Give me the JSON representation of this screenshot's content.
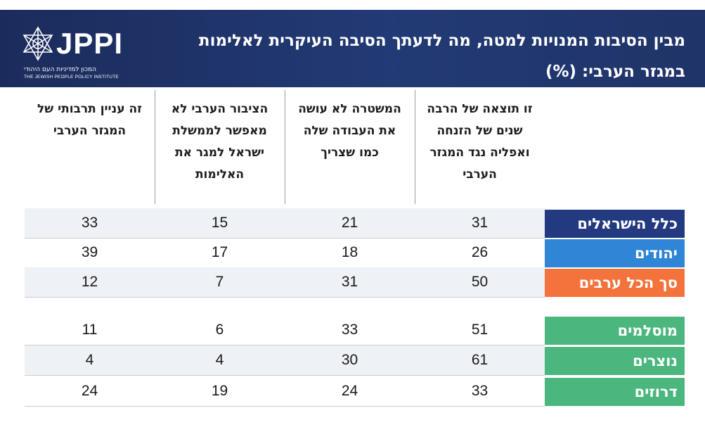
{
  "header": {
    "title": "מבין הסיבות המנויות למטה, מה לדעתך הסיבה העיקרית לאלימות במגזר הערבי: (%)",
    "logo_text": "JPPI",
    "logo_sub_hebrew": "המכון למדיניות העם היהודי",
    "logo_sub_english": "THE JEWISH PEOPLE POLICY INSTITUTE"
  },
  "colors": {
    "header_bg": "#1f3468",
    "all_israelis": "#233a80",
    "jews": "#2f86d6",
    "arabs_total": "#f4733c",
    "arab_subgroups": "#4bb77e",
    "row_shade": "#eef1f6"
  },
  "chart_data": {
    "type": "table",
    "title": "מבין הסיבות המנויות למטה, מה לדעתך הסיבה העיקרית לאלימות במגזר הערבי: (%)",
    "columns": [
      "זו תוצאה של הרבה שנים של הזנחה ואפליה נגד המגזר הערבי",
      "המשטרה לא עושה את העבודה שלה כמו שצריך",
      "הציבור הערבי לא מאפשר לממשלת ישראל למגר את האלימות",
      "זה עניין תרבותי של המגזר הערבי"
    ],
    "rows": [
      {
        "label": "כלל הישראלים",
        "values": [
          31,
          21,
          15,
          33
        ]
      },
      {
        "label": "יהודים",
        "values": [
          26,
          18,
          17,
          39
        ]
      },
      {
        "label": "סך הכל ערבים",
        "values": [
          50,
          31,
          7,
          12
        ]
      },
      {
        "label": "מוסלמים",
        "values": [
          51,
          33,
          6,
          11
        ]
      },
      {
        "label": "נוצרים",
        "values": [
          61,
          30,
          4,
          4
        ]
      },
      {
        "label": "דרוזים",
        "values": [
          33,
          24,
          19,
          24
        ]
      }
    ]
  }
}
